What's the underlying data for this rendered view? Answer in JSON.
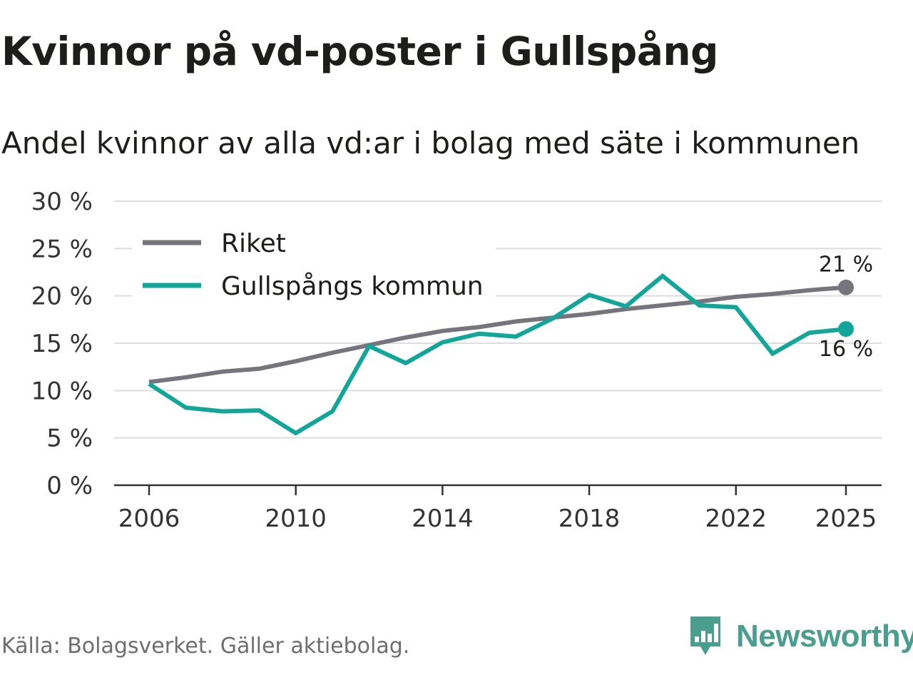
{
  "title": "Kvinnor på vd-poster i Gullspång",
  "subtitle": "Andel kvinnor av alla vd:ar i bolag med säte i kommunen",
  "source": "Källa: Bolagsverket. Gäller aktiebolag.",
  "brand": {
    "name": "Newsworthy",
    "icon": "newsworthy-logo-icon"
  },
  "colors": {
    "riket": "#76747c",
    "kommun": "#12a69a",
    "grid": "#dddddd",
    "axis": "#333333",
    "brand": "#4a9e8e"
  },
  "chart_data": {
    "type": "line",
    "title": "Kvinnor på vd-poster i Gullspång",
    "subtitle": "Andel kvinnor av alla vd:ar i bolag med säte i kommunen",
    "xlabel": "",
    "ylabel": "",
    "ylim": [
      0,
      30
    ],
    "xlim": [
      2006,
      2025
    ],
    "y_ticks": [
      0,
      5,
      10,
      15,
      20,
      25,
      30
    ],
    "y_tick_labels": [
      "0 %",
      "5 %",
      "10 %",
      "15 %",
      "20 %",
      "25 %",
      "30 %"
    ],
    "x_ticks": [
      2006,
      2010,
      2014,
      2018,
      2022,
      2025
    ],
    "x_tick_labels": [
      "2006",
      "2010",
      "2014",
      "2018",
      "2022",
      "2025"
    ],
    "grid": true,
    "legend_position": "top-left",
    "x": [
      2006,
      2007,
      2008,
      2009,
      2010,
      2011,
      2012,
      2013,
      2014,
      2015,
      2016,
      2017,
      2018,
      2019,
      2020,
      2021,
      2022,
      2023,
      2024,
      2025
    ],
    "series": [
      {
        "name": "Riket",
        "color": "#76747c",
        "values": [
          10.9,
          11.4,
          12.0,
          12.3,
          13.1,
          14.0,
          14.8,
          15.6,
          16.3,
          16.7,
          17.3,
          17.7,
          18.1,
          18.6,
          19.0,
          19.4,
          19.9,
          20.2,
          20.6,
          20.9
        ],
        "end_label": "21 %"
      },
      {
        "name": "Gullspångs kommun",
        "color": "#12a69a",
        "values": [
          10.7,
          8.2,
          7.8,
          7.9,
          5.5,
          7.8,
          14.7,
          12.9,
          15.1,
          16.0,
          15.7,
          17.6,
          20.1,
          18.9,
          22.1,
          19.0,
          18.8,
          13.9,
          16.1,
          16.5
        ],
        "end_label": "16 %"
      }
    ]
  }
}
